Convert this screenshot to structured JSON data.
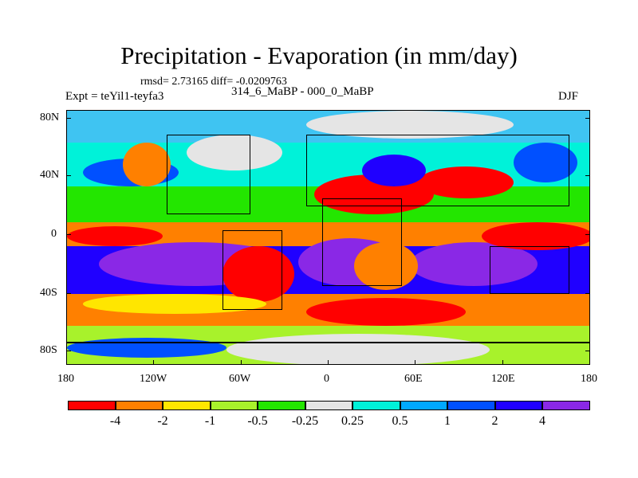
{
  "title": "Precipitation - Evaporation (in mm/day)",
  "stats": "rmsd= 2.73165 diff= -0.0209763",
  "period": "314_6_MaBP - 000_0_MaBP",
  "experiment": "Expt = teYil1-teyfa3",
  "season": "DJF",
  "lat_labels": [
    "80N",
    "40N",
    "0",
    "40S",
    "80S"
  ],
  "lon_labels": [
    "180",
    "120W",
    "60W",
    "0",
    "60E",
    "120E",
    "180"
  ],
  "colorbar": {
    "labels": [
      "-4",
      "-2",
      "-1",
      "-0.5",
      "-0.25",
      "0.25",
      "0.5",
      "1",
      "2",
      "4"
    ],
    "colors": [
      "#ff0000",
      "#ff8000",
      "#ffe600",
      "#a8f22b",
      "#23e600",
      "#e5e5e5",
      "#00f2d9",
      "#00a8ff",
      "#0050ff",
      "#2000ff",
      "#8a28e6"
    ]
  }
}
